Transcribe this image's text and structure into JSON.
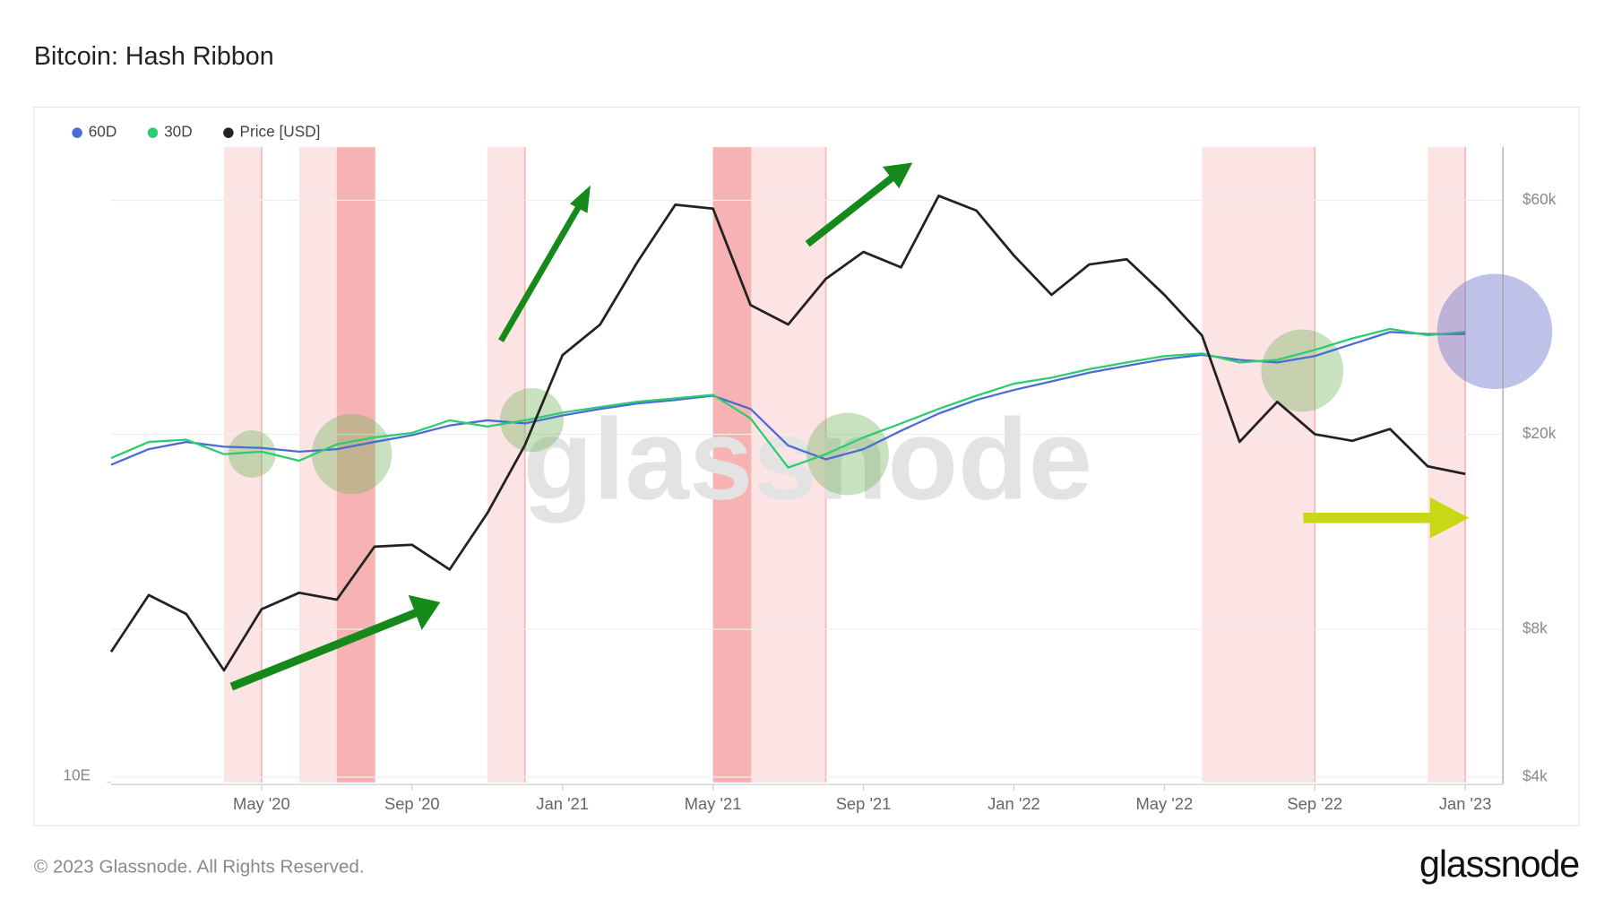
{
  "chart_data": {
    "type": "line",
    "title": "Bitcoin: Hash Ribbon",
    "footer": "© 2023 Glassnode. All Rights Reserved.",
    "logo": "glassnode",
    "watermark": "glassnode",
    "x": [
      "2020-01",
      "2020-02",
      "2020-03",
      "2020-04",
      "2020-05",
      "2020-06",
      "2020-07",
      "2020-08",
      "2020-09",
      "2020-10",
      "2020-11",
      "2020-12",
      "2021-01",
      "2021-02",
      "2021-03",
      "2021-04",
      "2021-05",
      "2021-06",
      "2021-07",
      "2021-08",
      "2021-09",
      "2021-10",
      "2021-11",
      "2021-12",
      "2022-01",
      "2022-02",
      "2022-03",
      "2022-04",
      "2022-05",
      "2022-06",
      "2022-07",
      "2022-08",
      "2022-09",
      "2022-10",
      "2022-11",
      "2022-12",
      "2023-01"
    ],
    "xlim": [
      "2020-01",
      "2023-02"
    ],
    "xticks": [
      {
        "value": "2020-05",
        "label": "May '20"
      },
      {
        "value": "2020-09",
        "label": "Sep '20"
      },
      {
        "value": "2021-01",
        "label": "Jan '21"
      },
      {
        "value": "2021-05",
        "label": "May '21"
      },
      {
        "value": "2021-09",
        "label": "Sep '21"
      },
      {
        "value": "2022-01",
        "label": "Jan '22"
      },
      {
        "value": "2022-05",
        "label": "May '22"
      },
      {
        "value": "2022-09",
        "label": "Sep '22"
      },
      {
        "value": "2023-01",
        "label": "Jan '23"
      }
    ],
    "ylim": [
      10,
      1000
    ],
    "yscale": "log",
    "yticks": [
      {
        "value": 10,
        "label": "10E"
      }
    ],
    "y2lim": [
      3900,
      77000
    ],
    "y2scale": "log",
    "y2ticks": [
      {
        "value": 4000,
        "label": "$4k"
      },
      {
        "value": 8000,
        "label": "$8k"
      },
      {
        "value": 20000,
        "label": "$20k"
      },
      {
        "value": 60000,
        "label": "$60k"
      }
    ],
    "grid": true,
    "legend": "top-left",
    "series": [
      {
        "name": "60D",
        "color": "#4a6cd4",
        "values": [
          100,
          112,
          118,
          114,
          113,
          110,
          112,
          118,
          124,
          133,
          138,
          135,
          143,
          150,
          156,
          160,
          165,
          150,
          115,
          104,
          112,
          128,
          145,
          160,
          172,
          183,
          195,
          205,
          215,
          222,
          214,
          210,
          220,
          240,
          262,
          258,
          258
        ]
      },
      {
        "name": "30D",
        "color": "#2ecc71",
        "values": [
          105,
          118,
          120,
          108,
          110,
          103,
          116,
          122,
          126,
          138,
          132,
          138,
          146,
          152,
          158,
          162,
          166,
          140,
          98,
          108,
          122,
          135,
          150,
          165,
          180,
          188,
          200,
          210,
          220,
          224,
          210,
          214,
          230,
          250,
          268,
          256,
          262
        ]
      },
      {
        "name": "Price [USD]",
        "color": "#222222",
        "axis": "y2",
        "values": [
          7200,
          9400,
          8600,
          6600,
          8800,
          9500,
          9200,
          11800,
          11900,
          10600,
          13800,
          19000,
          29000,
          33500,
          45000,
          58800,
          57700,
          36700,
          33500,
          41500,
          47100,
          43800,
          61300,
          57200,
          46300,
          38500,
          44400,
          45500,
          38500,
          31800,
          19300,
          23300,
          20000,
          19400,
          20500,
          17200,
          16600
        ]
      }
    ],
    "shaded_periods": [
      {
        "start": "2020-04",
        "end": "2020-05",
        "color": "#fde4e4"
      },
      {
        "start": "2020-06",
        "end": "2020-08",
        "color": "#fde4e4"
      },
      {
        "start": "2020-07",
        "end": "2020-08",
        "color": "#f7b3b3"
      },
      {
        "start": "2020-11",
        "end": "2020-12",
        "color": "#fde4e4"
      },
      {
        "start": "2021-05",
        "end": "2021-08",
        "color": "#fde4e4"
      },
      {
        "start": "2021-05",
        "end": "2021-06",
        "color": "#f7b3b3"
      },
      {
        "start": "2022-06",
        "end": "2022-09",
        "color": "#fde4e4"
      },
      {
        "start": "2022-12",
        "end": "2023-01",
        "color": "#fde4e4"
      }
    ]
  }
}
